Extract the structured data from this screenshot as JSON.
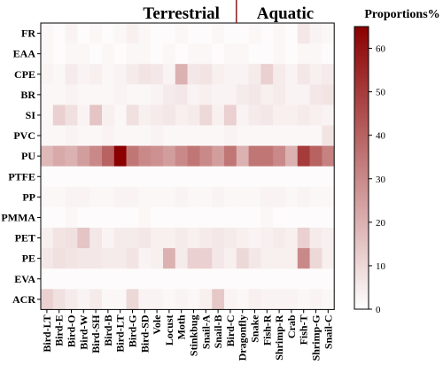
{
  "chart_data": {
    "type": "heatmap",
    "title": "",
    "group_labels": [
      "Terrestrial",
      "Aquatic"
    ],
    "colorbar": {
      "title": "Proportions%",
      "range": [
        0,
        65
      ],
      "ticks": [
        0,
        10,
        20,
        30,
        40,
        50,
        60
      ],
      "colors": {
        "low": "#ffffff",
        "high": "#8b0000"
      }
    },
    "rows": [
      "FR",
      "EAA",
      "CPE",
      "BR",
      "SI",
      "PVC",
      "PU",
      "PTFE",
      "PP",
      "PMMA",
      "PET",
      "PE",
      "EVA",
      "ACR"
    ],
    "columns": [
      "Bird-LT",
      "Bird-E",
      "Bird-O",
      "Bird-W",
      "Bird-SH",
      "Bird-B",
      "Bird-LT",
      "Bird-G",
      "Bird-SD",
      "Vole",
      "Locust",
      "Moth",
      "Stinkbug",
      "Snail-A",
      "Snail-B",
      "Bird-C",
      "Dragonfly",
      "Snake",
      "Fish-R",
      "Shrimp-R",
      "Crab",
      "Fish-T",
      "Shrimp-G",
      "Snail-C"
    ],
    "values": [
      [
        2,
        1,
        3,
        1,
        2,
        1,
        2,
        4,
        2,
        1,
        1,
        2,
        1,
        1,
        2,
        1,
        1,
        2,
        1,
        2,
        1,
        6,
        3,
        2
      ],
      [
        2,
        1,
        2,
        2,
        1,
        2,
        1,
        2,
        2,
        1,
        2,
        1,
        2,
        2,
        1,
        2,
        2,
        1,
        1,
        2,
        1,
        2,
        2,
        1
      ],
      [
        3,
        2,
        5,
        3,
        4,
        2,
        3,
        5,
        7,
        6,
        3,
        20,
        6,
        7,
        4,
        3,
        3,
        5,
        12,
        5,
        3,
        6,
        4,
        5
      ],
      [
        2,
        2,
        3,
        2,
        2,
        2,
        3,
        2,
        2,
        3,
        5,
        6,
        3,
        4,
        3,
        3,
        5,
        6,
        4,
        5,
        3,
        3,
        6,
        7
      ],
      [
        2,
        12,
        8,
        3,
        15,
        4,
        2,
        8,
        4,
        5,
        6,
        4,
        5,
        10,
        4,
        12,
        3,
        5,
        6,
        4,
        4,
        5,
        4,
        3
      ],
      [
        2,
        2,
        3,
        2,
        2,
        3,
        2,
        2,
        2,
        3,
        2,
        2,
        2,
        2,
        2,
        3,
        2,
        2,
        2,
        2,
        2,
        2,
        2,
        7
      ],
      [
        18,
        22,
        20,
        25,
        30,
        40,
        65,
        35,
        30,
        28,
        25,
        30,
        35,
        30,
        25,
        35,
        20,
        35,
        35,
        30,
        20,
        50,
        40,
        32
      ],
      [
        1,
        1,
        1,
        1,
        1,
        1,
        1,
        1,
        1,
        1,
        1,
        1,
        1,
        1,
        1,
        1,
        1,
        1,
        1,
        1,
        1,
        1,
        1,
        1
      ],
      [
        2,
        2,
        3,
        3,
        2,
        2,
        3,
        3,
        2,
        2,
        2,
        3,
        2,
        2,
        3,
        2,
        2,
        2,
        3,
        3,
        2,
        3,
        2,
        2
      ],
      [
        1,
        1,
        2,
        1,
        1,
        1,
        1,
        1,
        2,
        1,
        1,
        1,
        1,
        1,
        1,
        1,
        1,
        1,
        2,
        1,
        1,
        1,
        1,
        1
      ],
      [
        4,
        7,
        8,
        15,
        6,
        3,
        5,
        5,
        6,
        4,
        4,
        5,
        4,
        5,
        6,
        5,
        4,
        3,
        4,
        5,
        4,
        12,
        5,
        4
      ],
      [
        6,
        8,
        7,
        6,
        6,
        5,
        5,
        7,
        3,
        4,
        20,
        5,
        12,
        12,
        6,
        4,
        10,
        6,
        4,
        4,
        4,
        30,
        10,
        4
      ],
      [
        1,
        1,
        1,
        1,
        1,
        1,
        1,
        1,
        1,
        1,
        1,
        1,
        1,
        1,
        1,
        1,
        1,
        1,
        1,
        1,
        1,
        1,
        1,
        1
      ],
      [
        12,
        8,
        5,
        3,
        5,
        2,
        2,
        10,
        3,
        3,
        2,
        3,
        2,
        4,
        14,
        3,
        2,
        4,
        3,
        3,
        3,
        2,
        3,
        2
      ]
    ]
  }
}
